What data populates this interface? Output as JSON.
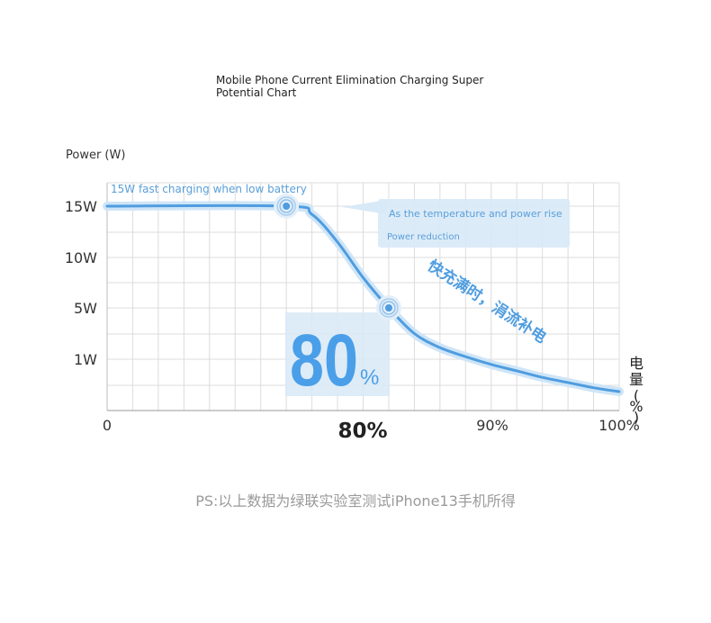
{
  "chart_data": {
    "type": "line",
    "title": "Mobile Phone Current Elimination Charging Super\nPotential Chart",
    "ylabel": "Power (W)",
    "xlabel_right": "电量(%)",
    "x_range": [
      0,
      100
    ],
    "y_ticks": [
      {
        "label": "15W",
        "value": 15
      },
      {
        "label": "10W",
        "value": 10
      },
      {
        "label": "5W",
        "value": 5
      },
      {
        "label": "1W",
        "value": 1
      }
    ],
    "x_ticks": [
      {
        "label": "0",
        "value": 0
      },
      {
        "label": "80%",
        "value": 80
      },
      {
        "label": "90%",
        "value": 90
      },
      {
        "label": "100%",
        "value": 100
      }
    ],
    "grid": true,
    "series": [
      {
        "x": [
          0,
          35,
          40,
          45,
          50,
          55,
          60,
          65,
          70,
          75,
          80,
          85,
          90,
          95,
          100
        ],
        "y": [
          15,
          15,
          14.2,
          11.5,
          8,
          5,
          3,
          1.9,
          1.2,
          0.6,
          0.1,
          -0.4,
          -0.8,
          -1.2,
          -1.5
        ]
      }
    ],
    "markers": [
      {
        "x": 35,
        "y": 15
      },
      {
        "x": 55,
        "y": 5
      }
    ],
    "big_value": "80",
    "big_unit": "%",
    "annotations": {
      "low_battery": "15W fast charging when low battery",
      "temp_rise": "As the temperature and power rise",
      "power_reduction": "Power reduction",
      "slogan": "快充满时，涓流补电"
    },
    "colors": {
      "line": "#4f9de0",
      "glow": "#cfe5f7",
      "box": "#d8e9f7",
      "big_text": "#4a9fe8",
      "grid": "#d9d9d9",
      "annotation_text": "#5a9fd8"
    }
  },
  "footnote": "PS:以上数据为绿联实验室测试iPhone13手机所得"
}
